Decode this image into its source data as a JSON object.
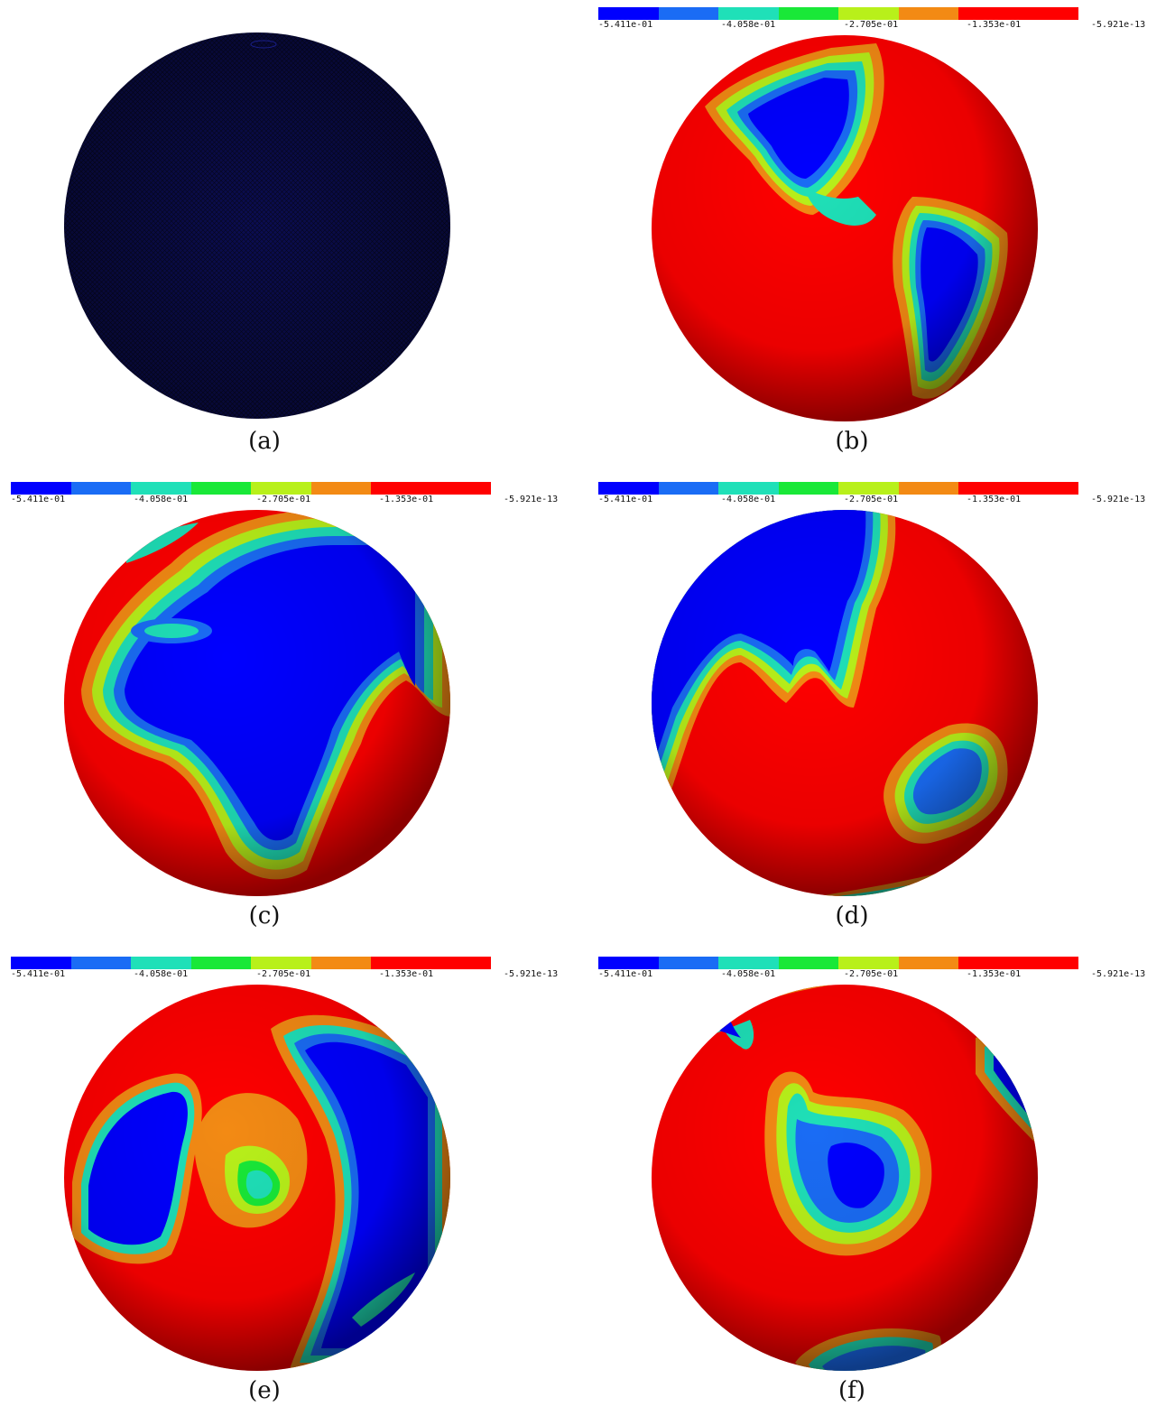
{
  "colorbar": {
    "colors": [
      "#0000ff",
      "#0074ff",
      "#00e0ff",
      "#00ff80",
      "#00ff00",
      "#a0ff00",
      "#ff9900",
      "#ff0000"
    ],
    "segment_colors": [
      "#0000ff",
      "#1a6cf5",
      "#1fe0b8",
      "#19e838",
      "#b8f01a",
      "#f38a14",
      "#ff0000",
      "#ff0000"
    ],
    "labels": [
      "-5.411e-01",
      "-4.058e-01",
      "-2.705e-01",
      "-1.353e-01",
      "-5.921e-13"
    ]
  },
  "panels": [
    {
      "id": "a",
      "caption": "(a)",
      "has_colorbar": false,
      "content": "mesh"
    },
    {
      "id": "b",
      "caption": "(b)",
      "has_colorbar": true,
      "content": "americas"
    },
    {
      "id": "c",
      "caption": "(c)",
      "has_colorbar": true,
      "content": "africa-europe"
    },
    {
      "id": "d",
      "caption": "(d)",
      "has_colorbar": true,
      "content": "asia-australia"
    },
    {
      "id": "e",
      "caption": "(e)",
      "has_colorbar": true,
      "content": "north-pole"
    },
    {
      "id": "f",
      "caption": "(f)",
      "has_colorbar": true,
      "content": "pacific"
    }
  ]
}
